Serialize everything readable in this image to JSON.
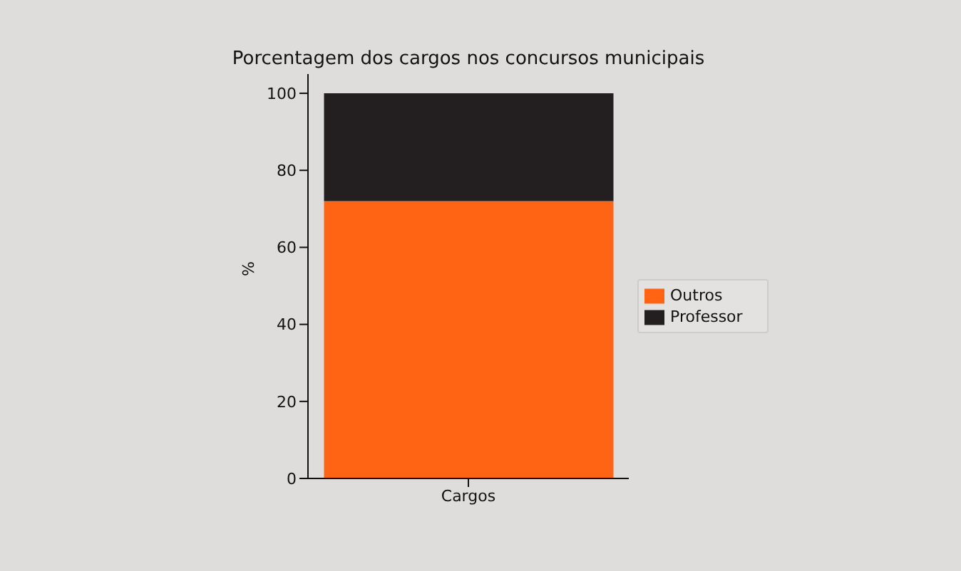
{
  "chart_data": {
    "type": "bar",
    "title": "Porcentagem dos cargos nos concursos municipais",
    "ylabel": "%",
    "categories": [
      "Cargos"
    ],
    "stacked": true,
    "series": [
      {
        "name": "Outros",
        "color": "#ff6314",
        "values": [
          72
        ]
      },
      {
        "name": "Professor",
        "color": "#231f20",
        "values": [
          28
        ]
      }
    ],
    "ylim": [
      0,
      105
    ],
    "yticks": [
      0,
      20,
      40,
      60,
      80,
      100
    ],
    "grid": false,
    "legend": "right"
  }
}
